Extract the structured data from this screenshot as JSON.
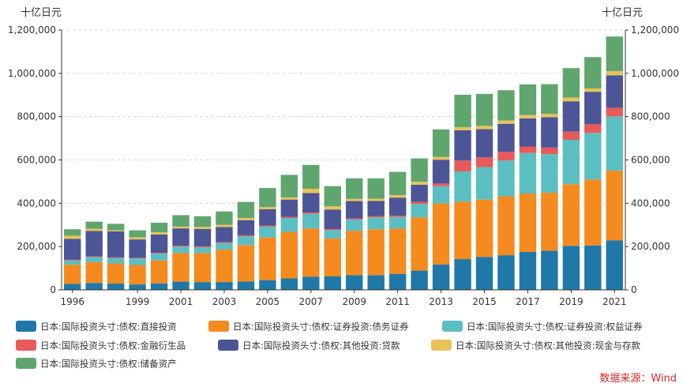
{
  "chart_data": {
    "type": "bar",
    "stacked": true,
    "unit_left": "十亿日元",
    "unit_right": "十亿日元",
    "categories": [
      "1996",
      "1997",
      "1998",
      "1999",
      "2000",
      "2001",
      "2002",
      "2003",
      "2004",
      "2005",
      "2006",
      "2007",
      "2008",
      "2009",
      "2010",
      "2011",
      "2012",
      "2013",
      "2014",
      "2015",
      "2016",
      "2017",
      "2018",
      "2019",
      "2020",
      "2021"
    ],
    "x_tick_labels": [
      "1996",
      "",
      "",
      "1999",
      "",
      "2001",
      "",
      "2003",
      "",
      "2005",
      "",
      "2007",
      "",
      "2009",
      "",
      "2011",
      "",
      "2013",
      "",
      "2015",
      "",
      "2017",
      "",
      "2019",
      "",
      "2021"
    ],
    "ylim": [
      0,
      1200000
    ],
    "yticks": [
      0,
      200000,
      400000,
      600000,
      800000,
      1000000,
      1200000
    ],
    "ytick_labels": [
      "0",
      "200,000",
      "400,000",
      "600,000",
      "800,000",
      "1,000,000",
      "1,200,000"
    ],
    "grid": true,
    "legend_position": "bottom",
    "series": [
      {
        "name": "日本:国际投资头寸:债权:直接投资",
        "color": "#1f78a8",
        "values": [
          28000,
          32000,
          29000,
          25000,
          30000,
          38000,
          36000,
          36000,
          39000,
          45000,
          53000,
          61000,
          62000,
          68000,
          68000,
          74000,
          89000,
          117000,
          142000,
          152000,
          160000,
          175000,
          181000,
          203000,
          205000,
          229000
        ]
      },
      {
        "name": "日本:国际投资头寸:债权:证券投资:债务证券",
        "color": "#f58a1f",
        "values": [
          88000,
          96000,
          93000,
          90000,
          106000,
          132000,
          134000,
          150000,
          168000,
          197000,
          215000,
          222000,
          175000,
          205000,
          212000,
          209000,
          246000,
          282000,
          265000,
          265000,
          272000,
          270000,
          268000,
          285000,
          305000,
          322000
        ]
      },
      {
        "name": "日本:国际投资头寸:债权:证券投资:权益证券",
        "color": "#5bbfc1",
        "values": [
          20000,
          24000,
          25000,
          30000,
          32000,
          30000,
          27000,
          30000,
          40000,
          50000,
          64000,
          68000,
          39000,
          52000,
          55000,
          54000,
          62000,
          80000,
          140000,
          150000,
          165000,
          187000,
          178000,
          205000,
          215000,
          250000
        ]
      },
      {
        "name": "日本:国际投资头寸:债权:金融衍生品",
        "color": "#e8595a",
        "values": [
          3000,
          3000,
          3000,
          3000,
          3000,
          4000,
          4000,
          4000,
          5000,
          5000,
          5000,
          6000,
          5000,
          5000,
          6000,
          6000,
          9000,
          12000,
          50000,
          45000,
          40000,
          30000,
          30000,
          38000,
          40000,
          40000
        ]
      },
      {
        "name": "日本:国际投资头寸:债权:其他投资:贷款",
        "color": "#4c5596",
        "values": [
          97000,
          117000,
          120000,
          85000,
          85000,
          80000,
          80000,
          70000,
          70000,
          75000,
          80000,
          90000,
          90000,
          80000,
          70000,
          83000,
          80000,
          110000,
          140000,
          130000,
          130000,
          130000,
          140000,
          140000,
          150000,
          150000
        ]
      },
      {
        "name": "日本:国际投资头寸:债权:其他投资:现金与存款",
        "color": "#e9c35a",
        "values": [
          14000,
          10000,
          5000,
          10000,
          10000,
          8000,
          10000,
          10000,
          10000,
          10000,
          10000,
          20000,
          15000,
          10000,
          10000,
          11000,
          13000,
          13000,
          14000,
          15000,
          15000,
          15000,
          15000,
          17000,
          15000,
          19000
        ]
      },
      {
        "name": "日本:国际投资头寸:债权:储备资产",
        "color": "#5fa66e",
        "values": [
          30000,
          33000,
          30000,
          32000,
          44000,
          53000,
          49000,
          62000,
          74000,
          88000,
          104000,
          110000,
          93000,
          95000,
          94000,
          108000,
          108000,
          127000,
          150000,
          148000,
          140000,
          142000,
          138000,
          136000,
          145000,
          160000
        ]
      }
    ]
  },
  "source_text": "数据来源：Wind"
}
